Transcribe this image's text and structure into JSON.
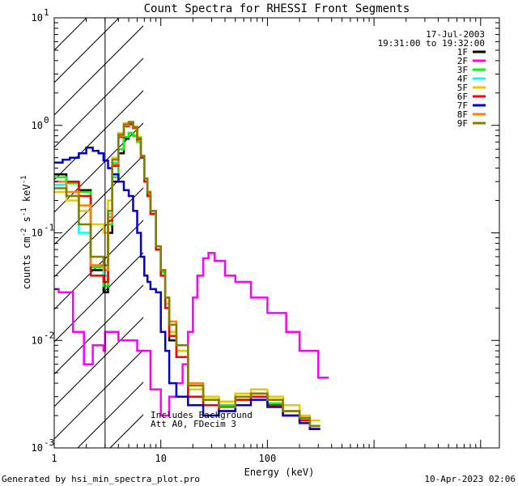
{
  "chart_data": {
    "type": "line",
    "title": "Count Spectra for RHESSI Front Segments",
    "xlabel": "Energy (keV)",
    "ylabel_parts": {
      "a": "counts cm",
      "b": "-2",
      "c": " s",
      "d": "-1",
      "e": " keV",
      "f": "-1"
    },
    "x_scale": "log",
    "y_scale": "log",
    "xlim": [
      1,
      15000
    ],
    "ylim": [
      0.001,
      10
    ],
    "x_ticks": [
      {
        "value": 1,
        "label": "1"
      },
      {
        "value": 10,
        "label": "10"
      },
      {
        "value": 100,
        "label": "100"
      }
    ],
    "y_ticks": [
      {
        "value": 0.001,
        "base": "10",
        "exp": "-3"
      },
      {
        "value": 0.01,
        "base": "10",
        "exp": "-2"
      },
      {
        "value": 0.1,
        "base": "10",
        "exp": "-1"
      },
      {
        "value": 1,
        "base": "10",
        "exp": "0"
      },
      {
        "value": 10,
        "base": "10",
        "exp": "1"
      }
    ],
    "date_label": "17-Jul-2003",
    "time_range_label": "19:31:00 to 19:32:00",
    "attenuator_note_line1": "Includes Background",
    "attenuator_note_line2": "Att A0, FDecim 3",
    "hatched_region_max_energy": 3,
    "footer_left": "Generated by hsi_min_spectra_plot.pro",
    "footer_right": "10-Apr-2023 02:06",
    "series": [
      {
        "name": "1F",
        "color": "#000000",
        "x": [
          1.0,
          1.3,
          1.7,
          2.2,
          2.9,
          3.2,
          3.5,
          4.0,
          4.5,
          5.0,
          5.5,
          6.0,
          6.5,
          7.0,
          7.5,
          8.0,
          9.0,
          10.0,
          11.0,
          12.0,
          14.0,
          18.0,
          25.0,
          35.0,
          50.0,
          70.0,
          100.0,
          140.0,
          200.0,
          250.0
        ],
        "values": [
          0.35,
          0.3,
          0.25,
          0.045,
          0.028,
          0.1,
          0.3,
          0.55,
          0.75,
          0.85,
          0.8,
          0.7,
          0.5,
          0.3,
          0.22,
          0.15,
          0.07,
          0.04,
          0.02,
          0.01,
          0.007,
          0.003,
          0.0025,
          0.0022,
          0.0028,
          0.003,
          0.0025,
          0.002,
          0.0018,
          0.0015
        ]
      },
      {
        "name": "2F",
        "color": "#ff00ff",
        "x": [
          1.0,
          1.1,
          1.5,
          1.9,
          2.3,
          2.9,
          3.0,
          4.0,
          6.0,
          8.0,
          10.0,
          12.0,
          14.0,
          16.0,
          18.0,
          20.0,
          22.0,
          25.0,
          28.0,
          32.0,
          40.0,
          50.0,
          70.0,
          100.0,
          150.0,
          200.0,
          300.0
        ],
        "values": [
          0.03,
          0.028,
          0.012,
          0.006,
          0.009,
          0.008,
          0.012,
          0.01,
          0.008,
          0.0035,
          0.002,
          0.003,
          0.004,
          0.006,
          0.012,
          0.025,
          0.04,
          0.058,
          0.065,
          0.055,
          0.04,
          0.035,
          0.025,
          0.018,
          0.012,
          0.008,
          0.0045
        ]
      },
      {
        "name": "3F",
        "color": "#00ff00",
        "x": [
          1.0,
          1.3,
          1.7,
          2.2,
          2.9,
          3.2,
          3.5,
          4.0,
          4.5,
          5.0,
          5.5,
          6.0,
          6.5,
          7.0,
          7.5,
          8.0,
          9.0,
          10.0,
          11.0,
          12.0,
          14.0,
          18.0,
          25.0,
          35.0,
          50.0,
          70.0,
          100.0,
          140.0,
          200.0,
          250.0
        ],
        "values": [
          0.33,
          0.29,
          0.24,
          0.048,
          0.032,
          0.12,
          0.33,
          0.6,
          0.78,
          0.85,
          0.8,
          0.7,
          0.52,
          0.32,
          0.23,
          0.16,
          0.075,
          0.043,
          0.022,
          0.012,
          0.008,
          0.0035,
          0.0028,
          0.0025,
          0.003,
          0.0032,
          0.0026,
          0.0022,
          0.0019,
          0.0016
        ]
      },
      {
        "name": "4F",
        "color": "#00ffff",
        "x": [
          1.0,
          1.3,
          1.7,
          2.2,
          2.9,
          3.2,
          3.5,
          4.0,
          4.5,
          5.0,
          5.5,
          6.0,
          6.5,
          7.0,
          7.5,
          8.0,
          9.0,
          10.0,
          11.0,
          12.0,
          14.0,
          18.0,
          25.0,
          35.0,
          50.0,
          70.0,
          100.0,
          140.0,
          200.0,
          250.0
        ],
        "values": [
          0.28,
          0.22,
          0.1,
          0.05,
          0.04,
          0.15,
          0.45,
          0.8,
          1.0,
          1.05,
          0.95,
          0.75,
          0.5,
          0.3,
          0.22,
          0.15,
          0.07,
          0.04,
          0.02,
          0.011,
          0.007,
          0.003,
          0.0025,
          0.0022,
          0.0028,
          0.003,
          0.0025,
          0.002,
          0.0018,
          0.0015
        ]
      },
      {
        "name": "5F",
        "color": "#e8c800",
        "x": [
          1.0,
          1.3,
          1.7,
          2.2,
          2.9,
          3.2,
          3.5,
          4.0,
          4.5,
          5.0,
          5.5,
          6.0,
          6.5,
          7.0,
          7.5,
          8.0,
          9.0,
          10.0,
          11.0,
          12.0,
          14.0,
          18.0,
          25.0,
          35.0,
          50.0,
          70.0,
          100.0,
          140.0,
          200.0,
          250.0
        ],
        "values": [
          0.24,
          0.2,
          0.16,
          0.12,
          0.1,
          0.2,
          0.5,
          0.85,
          1.05,
          1.08,
          0.98,
          0.78,
          0.52,
          0.32,
          0.23,
          0.16,
          0.075,
          0.045,
          0.022,
          0.012,
          0.008,
          0.0035,
          0.003,
          0.0027,
          0.0032,
          0.0035,
          0.003,
          0.0025,
          0.002,
          0.0018
        ]
      },
      {
        "name": "6F",
        "color": "#ff0000",
        "x": [
          1.0,
          1.3,
          1.7,
          2.2,
          2.9,
          3.2,
          3.5,
          4.0,
          4.5,
          5.0,
          5.5,
          6.0,
          6.5,
          7.0,
          7.5,
          8.0,
          9.0,
          10.0,
          11.0,
          12.0,
          14.0,
          18.0,
          25.0,
          35.0,
          50.0,
          70.0,
          100.0,
          140.0,
          200.0,
          250.0
        ],
        "values": [
          0.3,
          0.3,
          0.22,
          0.04,
          0.035,
          0.13,
          0.42,
          0.78,
          0.98,
          1.02,
          0.94,
          0.74,
          0.5,
          0.3,
          0.22,
          0.15,
          0.07,
          0.04,
          0.02,
          0.011,
          0.007,
          0.003,
          0.0025,
          0.0022,
          0.0028,
          0.003,
          0.0025,
          0.002,
          0.0018,
          0.0015
        ]
      },
      {
        "name": "7F",
        "color": "#0000cc",
        "x": [
          1.0,
          1.2,
          1.4,
          1.7,
          2.0,
          2.3,
          2.6,
          2.9,
          3.2,
          3.5,
          4.0,
          4.5,
          5.0,
          5.5,
          6.0,
          6.5,
          7.0,
          7.5,
          8.0,
          9.0,
          10.0,
          11.0,
          12.0,
          14.0,
          18.0,
          25.0,
          35.0,
          50.0,
          70.0,
          100.0,
          140.0,
          200.0,
          250.0
        ],
        "values": [
          0.45,
          0.48,
          0.5,
          0.55,
          0.62,
          0.58,
          0.55,
          0.47,
          0.4,
          0.35,
          0.3,
          0.25,
          0.22,
          0.16,
          0.1,
          0.06,
          0.04,
          0.035,
          0.03,
          0.028,
          0.012,
          0.008,
          0.004,
          0.003,
          0.0025,
          0.002,
          0.0022,
          0.0025,
          0.0028,
          0.0024,
          0.002,
          0.0017,
          0.0015
        ]
      },
      {
        "name": "8F",
        "color": "#ff8000",
        "x": [
          1.0,
          1.3,
          1.7,
          2.2,
          2.9,
          3.2,
          3.5,
          4.0,
          4.5,
          5.0,
          5.5,
          6.0,
          6.5,
          7.0,
          7.5,
          8.0,
          9.0,
          10.0,
          11.0,
          12.0,
          14.0,
          18.0,
          25.0,
          35.0,
          50.0,
          70.0,
          100.0,
          140.0,
          200.0,
          250.0
        ],
        "values": [
          0.3,
          0.24,
          0.18,
          0.05,
          0.045,
          0.14,
          0.44,
          0.8,
          1.0,
          1.08,
          0.96,
          0.76,
          0.52,
          0.32,
          0.24,
          0.16,
          0.075,
          0.045,
          0.025,
          0.015,
          0.009,
          0.004,
          0.0028,
          0.0024,
          0.003,
          0.0032,
          0.0028,
          0.0022,
          0.0019,
          0.0016
        ]
      },
      {
        "name": "9F",
        "color": "#808000",
        "x": [
          1.0,
          1.3,
          1.7,
          2.2,
          2.9,
          3.2,
          3.5,
          4.0,
          4.5,
          5.0,
          5.5,
          6.0,
          6.5,
          7.0,
          7.5,
          8.0,
          9.0,
          10.0,
          11.0,
          12.0,
          14.0,
          18.0,
          25.0,
          35.0,
          50.0,
          70.0,
          100.0,
          140.0,
          200.0,
          250.0
        ],
        "values": [
          0.26,
          0.22,
          0.12,
          0.06,
          0.05,
          0.16,
          0.48,
          0.82,
          1.02,
          1.06,
          0.96,
          0.76,
          0.52,
          0.32,
          0.24,
          0.16,
          0.075,
          0.045,
          0.025,
          0.014,
          0.009,
          0.0038,
          0.0028,
          0.0024,
          0.003,
          0.0032,
          0.0028,
          0.0022,
          0.0019,
          0.0016
        ]
      }
    ]
  }
}
